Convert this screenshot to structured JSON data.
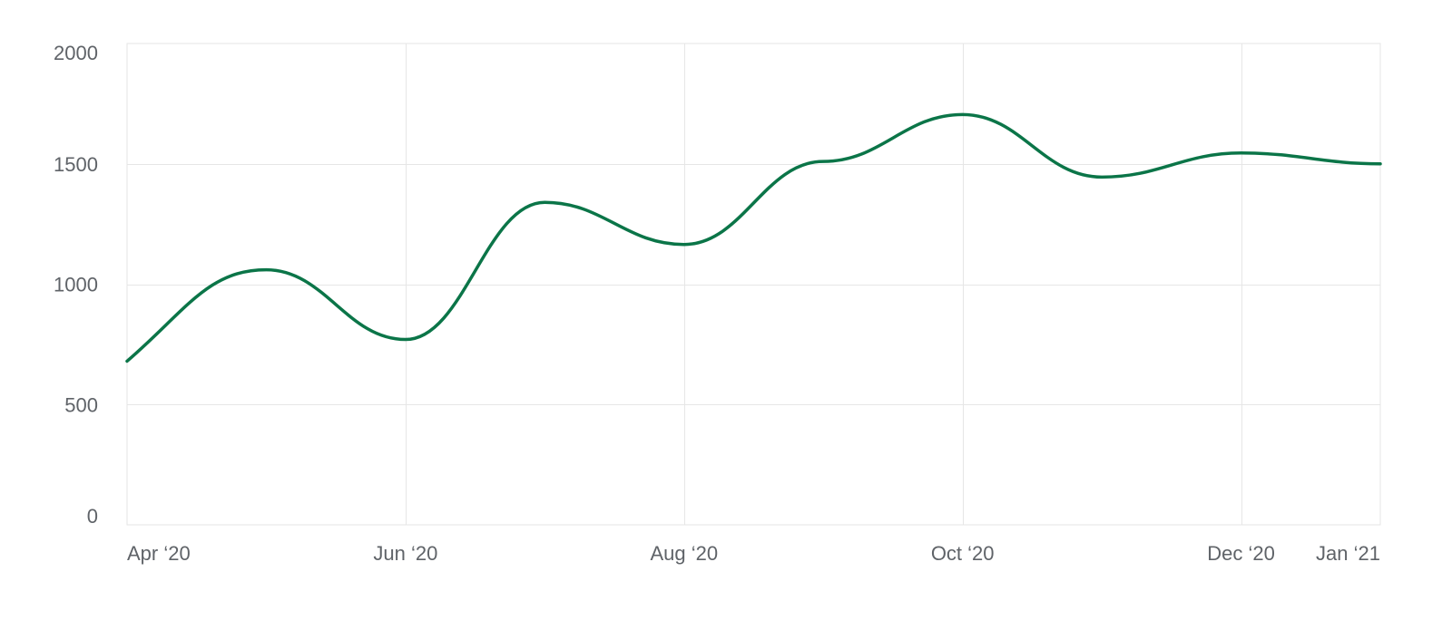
{
  "chart_data": {
    "type": "line",
    "title": "",
    "xlabel": "",
    "ylabel": "",
    "x_tick_labels": [
      {
        "label": "Apr ‘20",
        "month": 0
      },
      {
        "label": "Jun ‘20",
        "month": 2
      },
      {
        "label": "Aug ‘20",
        "month": 4
      },
      {
        "label": "Oct ‘20",
        "month": 6
      },
      {
        "label": "Dec ‘20",
        "month": 8
      },
      {
        "label": "Jan ‘21",
        "month": 9
      }
    ],
    "y_ticks": [
      0,
      500,
      1000,
      1500,
      2000
    ],
    "ylim": [
      0,
      2000
    ],
    "xlim": [
      0,
      9
    ],
    "grid": true,
    "legend": "none",
    "series": [
      {
        "color": "#0b7548",
        "points": [
          {
            "month": 0.0,
            "value": 680
          },
          {
            "month": 1.0,
            "value": 1060
          },
          {
            "month": 2.0,
            "value": 770
          },
          {
            "month": 3.0,
            "value": 1340
          },
          {
            "month": 4.0,
            "value": 1165
          },
          {
            "month": 5.0,
            "value": 1510
          },
          {
            "month": 6.0,
            "value": 1705
          },
          {
            "month": 7.0,
            "value": 1445
          },
          {
            "month": 8.0,
            "value": 1545
          },
          {
            "month": 9.0,
            "value": 1500
          }
        ]
      }
    ]
  }
}
